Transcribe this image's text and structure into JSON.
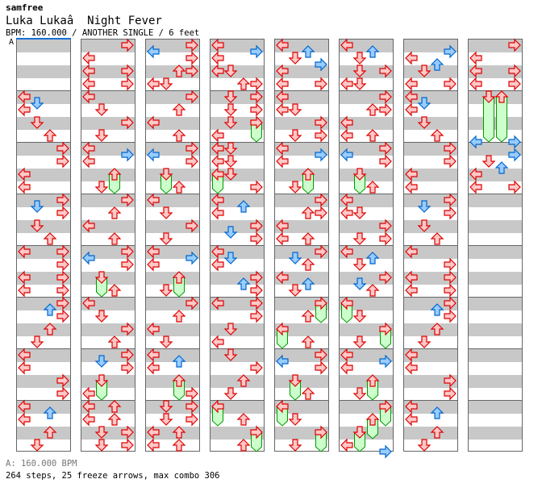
{
  "header": {
    "author": "samfree",
    "title": "Luka Lukaâ  Night Fever",
    "info": "BPM: 160.000 / ANOTHER SINGLE / 6 feet",
    "bpm_marker_label": "A"
  },
  "footer": {
    "bpm_line": "A: 160.000 BPM",
    "summary": "264 steps, 25 freeze arrows, max combo 306"
  },
  "colors": {
    "quarter": "#ffc8c8",
    "quarter_stroke": "#dd0000",
    "eighth": "#99ccff",
    "eighth_stroke": "#0066cc",
    "freeze": "#ccffcc",
    "freeze_stroke": "#009900",
    "bpm_marker": "#1a6fd6"
  },
  "chart": {
    "columns": 8,
    "measures_per_column": 8,
    "rows_per_measure": 8,
    "measures": {
      "1": "0L 1D 2L 4D 6U",
      "2": "0R 2R 4L 6L",
      "3": "0R 1D 2R 4D 6U",
      "4": "0L 0R 2R 4L 4R 6L 6R",
      "5": "0R 1U 2R 4U 6D",
      "6": "0L 2L 4R 6R",
      "7": "0L 1U 2L 4U 6D",
      "8": "0R 2L 4L 4R 6L 6R",
      "9": "0L 2D 4R 6D",
      "10": "0L 1R 2L 4U 6D",
      "11": "0R 2U 4L 6U",
      "12": "0R 1L 2R 4D 6U",
      "13": "0L 2D 4R 6U",
      "14": "0R 1D 2R 4D 6L",
      "15": "0L 0U 2L 2U 4D 4R 6D 6R",
      "16": "0R 1L 2R 4U 4R 6L 6D",
      "17": "0R 2U 4L 6U",
      "18": "0R 1L 2R 4D 6U",
      "19": "0L 2D 4R 6D",
      "20": "0L 1R 2L 4U 6D",
      "21": "0R 2U 4L 6D",
      "22": "0L 1U 2L 4U 6R",
      "23": "0D 0R 2D 2R 4L 4U 6L 6U",
      "24": "0L 1R 2L 4L 4D 6U 6R",
      "25": "0D 0R 2D 2R 4D 4R 6L",
      "26": "0L 0D 2L 2D 4L 4D 6R",
      "27": "0L 1U 2L 4R 5D 6R",
      "28": "0L 1D 2L 4R 5U 6R",
      "29": "0L 0R 2R 4D 6L",
      "30": "0D 2R 4U 6D",
      "31": "0L 2U 4R 6U",
      "32": "0L 1U 2D 3R 4L 6L 6R",
      "33": "0L 2L 2D 4R 6D 6R",
      "34": "0L 1R 2L 4U 6D",
      "35": "0R 2U 2R 4L 6L 6U",
      "36": "0R 1D 2U 4L 5U 6D",
      "37": "0R 2U 4L 6U",
      "38": "0R 1L 2R 4D 6U",
      "39": "0L 2D 4R 6D",
      "40": "0L 1U 2D 4D 4R 6L 6D",
      "41": "0R 2U 2R 4L 6L 6U",
      "42": "0R 1L 2R 4D 6U",
      "43": "0L 2L 2D 4R 6D 6R",
      "44": "0L 1U 2D 4R 5D 6U",
      "45": "0L 2D 4R 6D",
      "46": "0L 1R 2L 4U 6D",
      "47": "0R 2U 4D 6L 7R",
      "48": "1R 2L 3U 4D 6L 6R",
      "49": "0L 1D 2L 4D 6U",
      "50": "0R 2R 4L 6L",
      "51": "0R 1D 2R 4D 6U",
      "52": "0L 2R 4L 4R 6L 6R",
      "53": "0R 1U 2R 4U 6D",
      "54": "0L 2L 4R 6R",
      "55": "0L 1U 2L 4U 6D",
      "56": "0R 2L 4L 4R 6L 6R",
      "57": "0D 0U 7L 7R",
      "58": "1R 2D 3U 4L 6L 6R"
    },
    "freezes": [
      [
        10,
        4,
        "U",
        3
      ],
      [
        12,
        4,
        "D",
        3
      ],
      [
        14,
        4,
        "D",
        3
      ],
      [
        18,
        4,
        "D",
        3
      ],
      [
        20,
        4,
        "U",
        3
      ],
      [
        22,
        4,
        "U",
        3
      ],
      [
        25,
        4,
        "R",
        3
      ],
      [
        26,
        4,
        "L",
        3
      ],
      [
        31,
        0,
        "L",
        3
      ],
      [
        31,
        4,
        "R",
        3
      ],
      [
        34,
        4,
        "U",
        3
      ],
      [
        37,
        0,
        "R",
        3
      ],
      [
        37,
        4,
        "L",
        3
      ],
      [
        38,
        4,
        "D",
        3
      ],
      [
        39,
        0,
        "L",
        3
      ],
      [
        39,
        4,
        "R",
        3
      ],
      [
        42,
        4,
        "D",
        3
      ],
      [
        45,
        0,
        "L",
        3
      ],
      [
        45,
        4,
        "R",
        3
      ],
      [
        46,
        4,
        "U",
        3
      ],
      [
        47,
        0,
        "R",
        3
      ],
      [
        47,
        2,
        "U",
        3
      ],
      [
        47,
        4,
        "D",
        3
      ],
      [
        57,
        0,
        "D",
        7
      ],
      [
        57,
        0,
        "U",
        7
      ]
    ]
  }
}
